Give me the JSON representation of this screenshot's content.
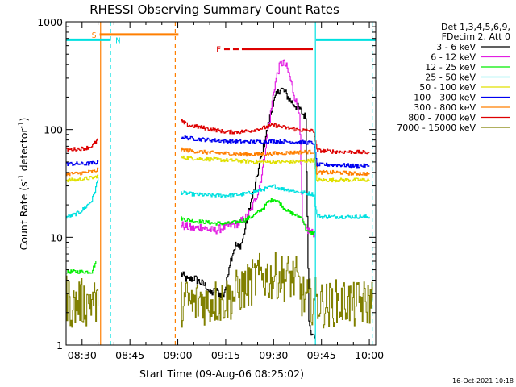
{
  "chart_data": {
    "type": "line",
    "title": "RHESSI Observing Summary Count Rates",
    "xlabel": "Start Time (09-Aug-06 08:25:02)",
    "ylabel_main": "Count Rate (s",
    "ylabel_sup1": "-1",
    "ylabel_mid": " detector",
    "ylabel_sup2": "-1",
    "ylabel_end": ")",
    "yscale": "log",
    "ylim": [
      1,
      1000
    ],
    "xlim_minutes": [
      0,
      97
    ],
    "x_ticks": [
      {
        "m": 5,
        "label": "08:30"
      },
      {
        "m": 20,
        "label": "08:45"
      },
      {
        "m": 35,
        "label": "09:00"
      },
      {
        "m": 50,
        "label": "09:15"
      },
      {
        "m": 65,
        "label": "09:30"
      },
      {
        "m": 80,
        "label": "09:45"
      },
      {
        "m": 95,
        "label": "10:00"
      }
    ],
    "y_ticks": [
      {
        "v": 1,
        "label": "1"
      },
      {
        "v": 10,
        "label": "10"
      },
      {
        "v": 100,
        "label": "100"
      },
      {
        "v": 1000,
        "label": "1000"
      }
    ],
    "legend": {
      "header_line1": "Det 1,3,4,5,6,9,",
      "header_line2": "FDecim 2, Att 0",
      "position": "right"
    },
    "series": [
      {
        "name": "3 - 6 keV",
        "color": "#000000",
        "segments": [
          {
            "x": [
              35.9,
              38,
              40,
              42,
              44,
              45,
              47,
              49,
              50,
              51,
              52,
              53,
              54,
              55,
              56,
              57,
              58,
              59,
              60,
              61,
              62,
              63,
              64,
              65,
              66,
              67,
              68,
              69,
              70,
              71,
              72,
              73,
              74,
              75,
              76,
              77,
              78
            ],
            "y": [
              4.6,
              4,
              4.2,
              3.8,
              3.5,
              3,
              3.2,
              2.8,
              3.5,
              5.5,
              7,
              8.5,
              8,
              9,
              12,
              17,
              22,
              28,
              40,
              55,
              75,
              100,
              140,
              180,
              215,
              240,
              230,
              210,
              190,
              175,
              165,
              155,
              140,
              130,
              1.8,
              1.2,
              1.2
            ]
          }
        ]
      },
      {
        "name": "6 - 12 keV",
        "color": "#e21ee2",
        "segments": [
          {
            "x": [
              35.9,
              38,
              40,
              42,
              44,
              46,
              48,
              50,
              52,
              54,
              56,
              57,
              58,
              59,
              60,
              61,
              62,
              63,
              64,
              65,
              66,
              67,
              68,
              69,
              70,
              71,
              72,
              73,
              74,
              75,
              76,
              77,
              78
            ],
            "y": [
              13,
              12.5,
              12,
              12.5,
              12,
              11.5,
              12,
              12.5,
              13,
              13.5,
              15,
              16,
              18,
              22,
              26,
              35,
              55,
              90,
              140,
              230,
              320,
              400,
              420,
              380,
              310,
              230,
              180,
              150,
              13.5,
              12,
              11.5,
              11,
              11
            ]
          }
        ]
      },
      {
        "name": "12 - 25 keV",
        "color": "#00ee00",
        "segments": [
          {
            "x": [
              0,
              2,
              4,
              6,
              8,
              9.3
            ],
            "y": [
              4.8,
              4.8,
              4.8,
              4.8,
              4.8,
              6
            ]
          },
          {
            "x": [
              35.9,
              38,
              40,
              42,
              44,
              46,
              48,
              50,
              52,
              54,
              56,
              58,
              60,
              62,
              63,
              64,
              65,
              66,
              67,
              68,
              69,
              70,
              71,
              72,
              73,
              74,
              75,
              76,
              77,
              78
            ],
            "y": [
              15,
              14.5,
              14.2,
              14,
              13.8,
              13.5,
              13.5,
              13.4,
              13.6,
              14,
              14.5,
              15.5,
              17,
              19,
              21,
              22,
              22.5,
              22,
              20.5,
              19,
              18,
              17,
              16.5,
              16,
              15.5,
              15,
              12,
              11,
              11,
              11
            ]
          }
        ]
      },
      {
        "name": "25 - 50 keV",
        "color": "#00e0e0",
        "segments": [
          {
            "x": [
              0,
              2,
              4,
              6,
              8,
              9,
              10
            ],
            "y": [
              15.5,
              16,
              17,
              19,
              22,
              27,
              36
            ]
          },
          {
            "x": [
              35.9,
              40,
              45,
              50,
              55,
              58,
              60,
              62,
              64,
              65,
              66,
              68,
              70,
              72,
              74,
              76,
              77.5,
              78.5,
              80,
              85,
              90,
              95
            ],
            "y": [
              26,
              25,
              24.5,
              24.5,
              25,
              26,
              27,
              28,
              29,
              30,
              29,
              28,
              27.5,
              26.5,
              26,
              25.5,
              25,
              16,
              15.5,
              15.5,
              15.5,
              15.5
            ]
          }
        ]
      },
      {
        "name": "50 - 100 keV",
        "color": "#e0e000",
        "segments": [
          {
            "x": [
              0,
              3,
              6,
              9,
              10
            ],
            "y": [
              34,
              34,
              35,
              36,
              38
            ]
          },
          {
            "x": [
              35.9,
              40,
              45,
              50,
              55,
              60,
              65,
              70,
              75,
              77.5,
              78.5,
              85,
              90,
              95
            ],
            "y": [
              55,
              54,
              53,
              52,
              51,
              50,
              50,
              50,
              51,
              52,
              34,
              34,
              34,
              34
            ]
          }
        ]
      },
      {
        "name": "100 - 300 keV",
        "color": "#0000f0",
        "segments": [
          {
            "x": [
              0,
              3,
              6,
              9,
              10
            ],
            "y": [
              48,
              48,
              48,
              49,
              50
            ]
          },
          {
            "x": [
              35.9,
              40,
              45,
              50,
              55,
              60,
              65,
              70,
              75,
              77.5,
              78.5,
              85,
              90,
              95
            ],
            "y": [
              85,
              82,
              80,
              78,
              77,
              77,
              78,
              77,
              76,
              75,
              47,
              47,
              46,
              46
            ]
          }
        ]
      },
      {
        "name": "300 - 800 keV",
        "color": "#ff7f00",
        "segments": [
          {
            "x": [
              0,
              3,
              6,
              9,
              10
            ],
            "y": [
              39,
              39,
              40,
              41,
              43
            ]
          },
          {
            "x": [
              35.9,
              40,
              45,
              50,
              55,
              60,
              65,
              70,
              75,
              77.5,
              78.5,
              85,
              90,
              95
            ],
            "y": [
              65,
              63,
              61,
              60,
              59,
              59,
              60,
              61,
              62,
              62,
              40,
              40,
              39,
              39
            ]
          }
        ]
      },
      {
        "name": "800 - 7000 keV",
        "color": "#dd0000",
        "segments": [
          {
            "x": [
              0,
              3,
              6,
              8,
              9,
              10
            ],
            "y": [
              65,
              66,
              67,
              70,
              75,
              82
            ]
          },
          {
            "x": [
              35.9,
              38,
              42,
              46,
              50,
              54,
              58,
              62,
              65,
              68,
              72,
              75,
              77.5,
              78.5,
              82,
              86,
              90,
              95
            ],
            "y": [
              120,
              110,
              105,
              100,
              95,
              95,
              98,
              104,
              110,
              105,
              100,
              98,
              97,
              64,
              63,
              62,
              62,
              61
            ]
          }
        ]
      },
      {
        "name": "7000 - 15000 keV",
        "color": "#808000",
        "segments": [
          {
            "x": [
              0,
              2,
              4,
              6,
              8,
              10
            ],
            "y": [
              2.8,
              2.2,
              2.6,
              2.4,
              2.7,
              2.3
            ]
          },
          {
            "x": [
              35.9,
              38,
              40,
              42,
              44,
              46,
              48,
              50,
              52,
              54,
              56,
              58,
              60,
              62,
              64,
              66,
              68,
              70,
              72,
              74,
              76,
              78,
              80,
              82,
              84,
              86,
              88,
              90,
              92,
              94,
              96
            ],
            "y": [
              2.4,
              2.6,
              2.3,
              2.7,
              2.4,
              2.6,
              2.5,
              2.7,
              2.8,
              3.2,
              3.4,
              3.8,
              4.3,
              4.3,
              4.2,
              4.4,
              4.2,
              4.3,
              4,
              2.8,
              2.5,
              2.6,
              2.4,
              2.3,
              2.5,
              2.4,
              2.6,
              2.3,
              2.5,
              2.4,
              2.6
            ]
          }
        ]
      }
    ],
    "state_bars": [
      {
        "label": "S",
        "color": "#ff7f00",
        "y": 760,
        "x_start": 10.5,
        "x_end": 35.2
      },
      {
        "label": "N",
        "color": "#00e0e0",
        "y": 680,
        "x_start": 0,
        "x_end": 14,
        "label_x": 15.5
      },
      {
        "label": "",
        "color": "#00e0e0",
        "y": 680,
        "x_start": 78.3,
        "x_end": 97
      },
      {
        "label": "F",
        "color": "#dd0000",
        "y": 560,
        "x_start": 49.5,
        "x_end": 77.3,
        "dashed_until": 55.5
      }
    ],
    "vlines": [
      {
        "m": 10.8,
        "color": "#ff7f00",
        "style": "solid"
      },
      {
        "m": 13.9,
        "color": "#00e0e0",
        "style": "dashed"
      },
      {
        "m": 34.2,
        "color": "#ff7f00",
        "style": "dashed"
      },
      {
        "m": 78.1,
        "color": "#00e0e0",
        "style": "solid"
      },
      {
        "m": 95.9,
        "color": "#00e0e0",
        "style": "dashed"
      }
    ],
    "timestamp": "16-Oct-2021 10:18"
  }
}
